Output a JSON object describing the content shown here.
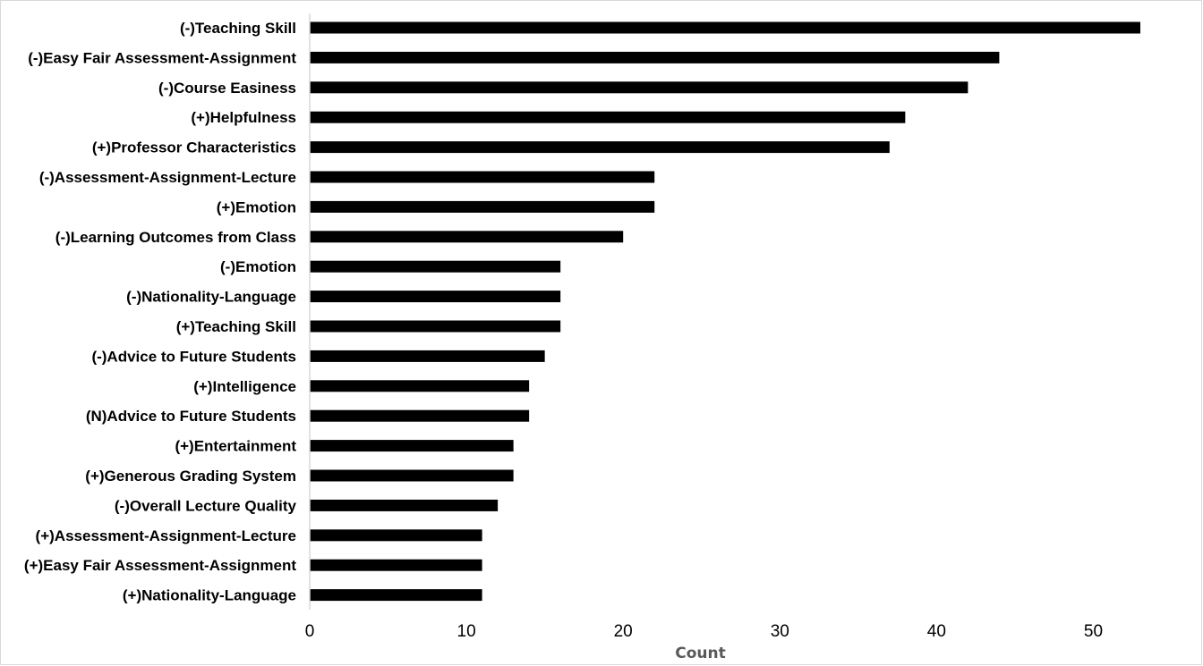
{
  "chart_data": {
    "type": "bar",
    "orientation": "horizontal",
    "categories": [
      "(-)Teaching Skill",
      "(-)Easy Fair Assessment-Assignment",
      "(-)Course Easiness",
      "(+)Helpfulness",
      "(+)Professor Characteristics",
      "(-)Assessment-Assignment-Lecture",
      "(+)Emotion",
      "(-)Learning Outcomes from Class",
      "(-)Emotion",
      "(-)Nationality-Language",
      "(+)Teaching Skill",
      "(-)Advice to Future Students",
      "(+)Intelligence",
      "(N)Advice to Future Students",
      "(+)Entertainment",
      "(+)Generous Grading System",
      "(-)Overall Lecture Quality",
      "(+)Assessment-Assignment-Lecture",
      "(+)Easy Fair Assessment-Assignment",
      "(+)Nationality-Language"
    ],
    "values": [
      53,
      44,
      42,
      38,
      37,
      22,
      22,
      20,
      16,
      16,
      16,
      15,
      14,
      14,
      13,
      13,
      12,
      11,
      11,
      11
    ],
    "xlabel": "Count",
    "ylabel": "",
    "xlim": [
      0,
      55
    ],
    "xticks": [
      0,
      10,
      20,
      30,
      40,
      50
    ],
    "grid": false,
    "bar_color": "#000000"
  }
}
